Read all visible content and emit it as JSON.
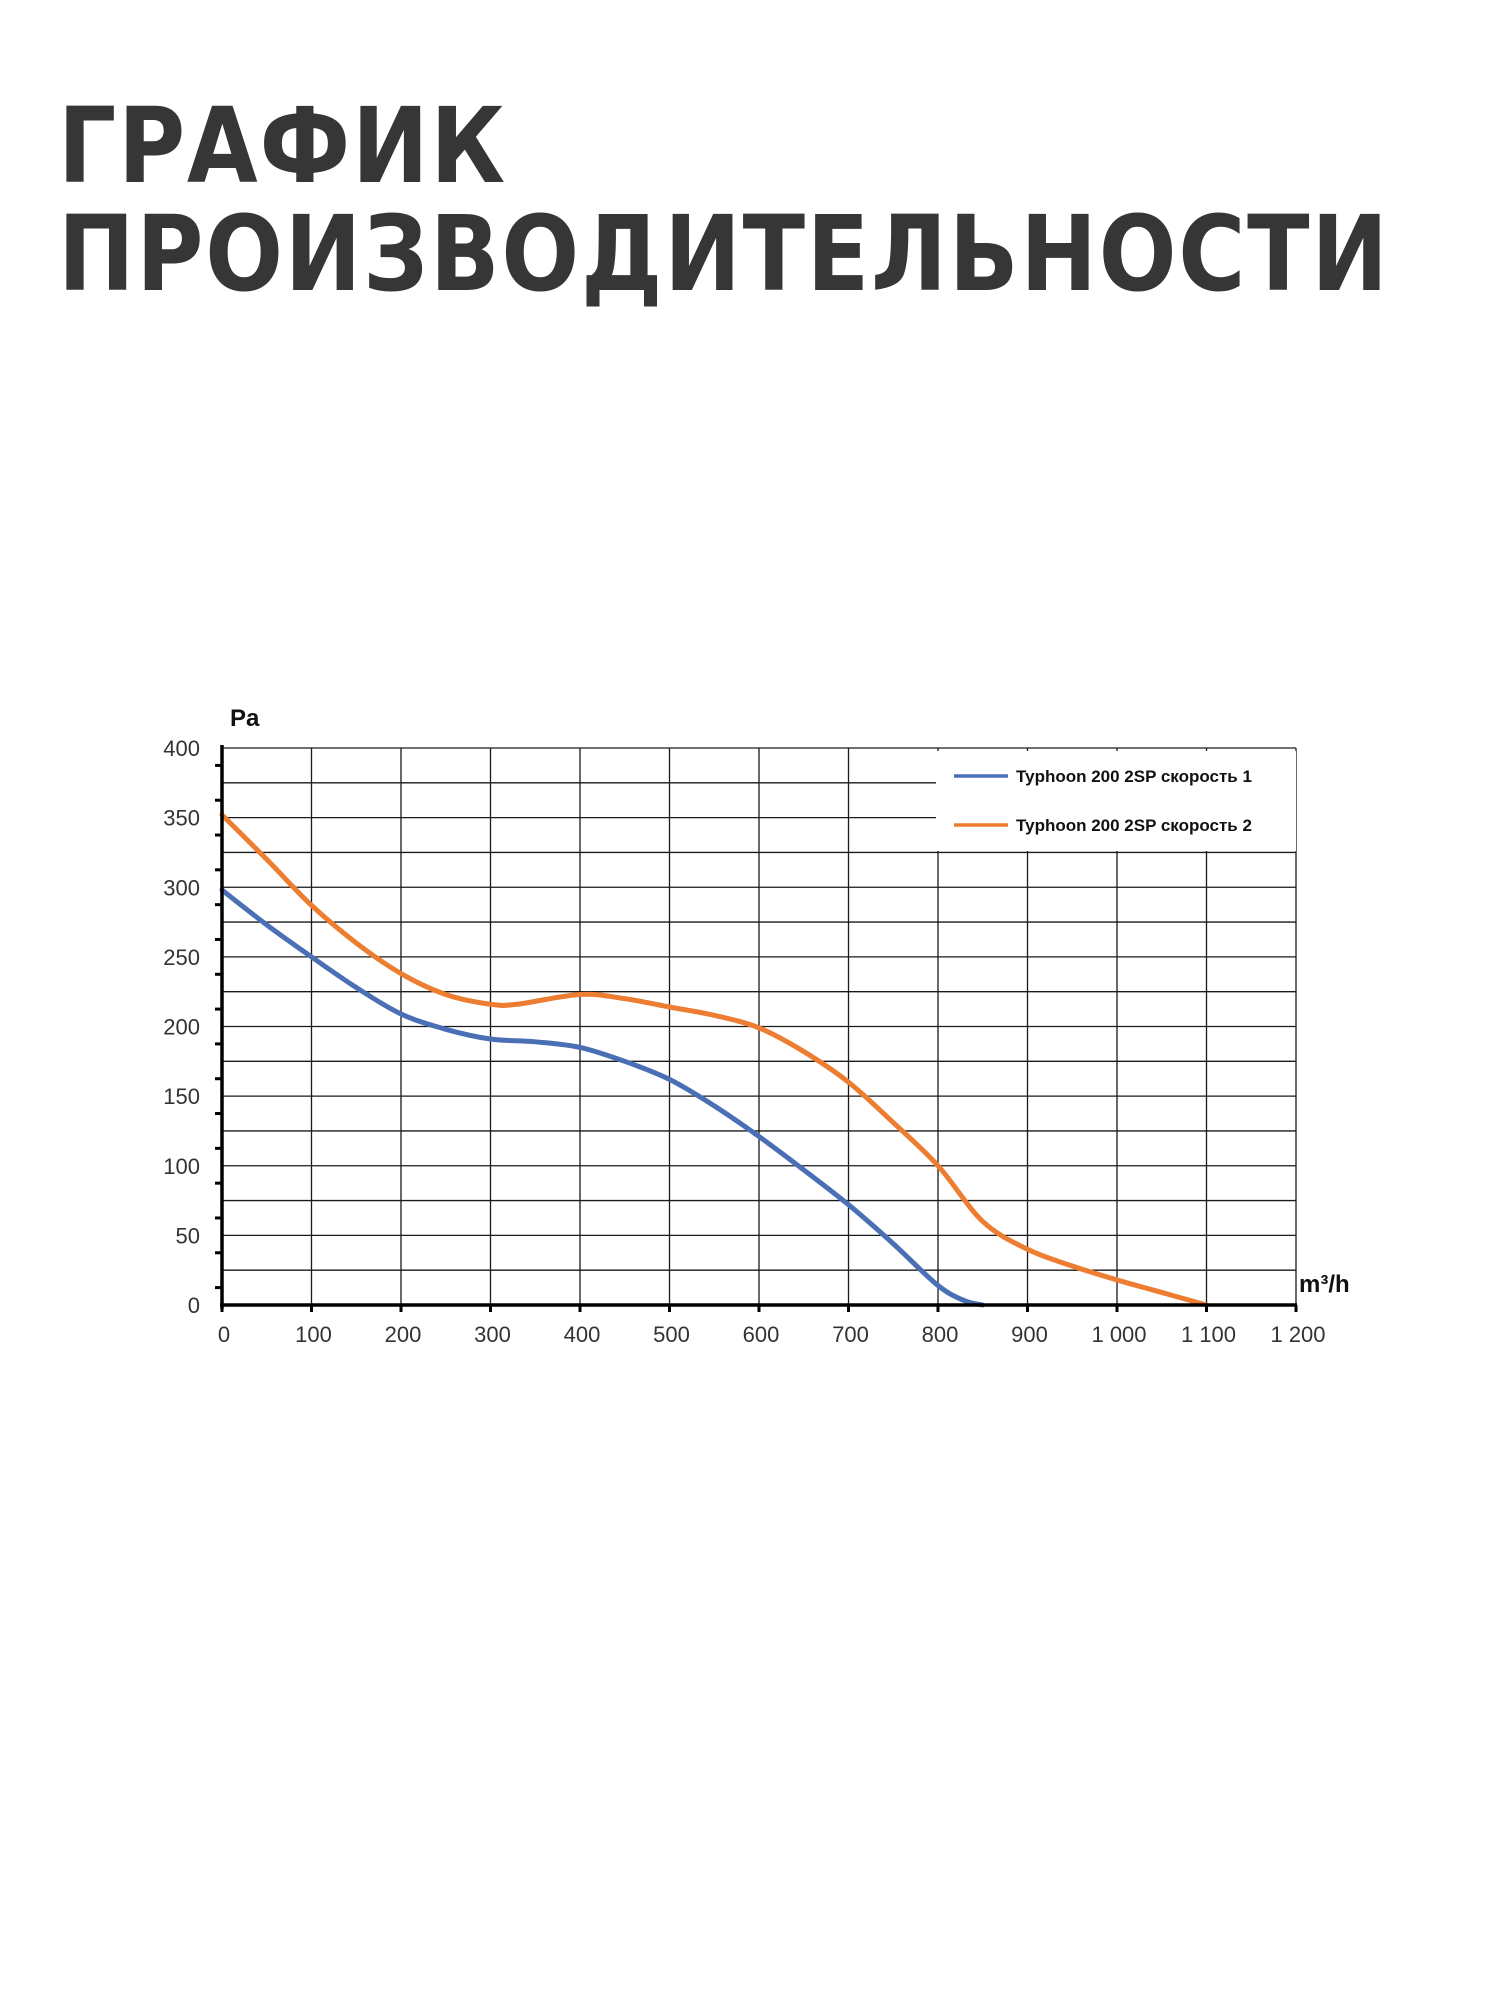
{
  "page": {
    "title_line1": "ГРАФИК",
    "title_line2": "ПРОИЗВОДИТЕЛЬНОСТИ"
  },
  "chart_data": {
    "type": "line",
    "ylabel": "Pa",
    "xlabel": "m³/h",
    "xlim": [
      0,
      1200
    ],
    "ylim": [
      0,
      400
    ],
    "xticks": [
      0,
      100,
      200,
      300,
      400,
      500,
      600,
      700,
      800,
      900,
      1000,
      1100,
      1200
    ],
    "xtick_labels": [
      "0",
      "100",
      "200",
      "300",
      "400",
      "500",
      "600",
      "700",
      "800",
      "900",
      "1 000",
      "1 100",
      "1 200"
    ],
    "yticks": [
      0,
      50,
      100,
      150,
      200,
      250,
      300,
      350,
      400
    ],
    "ytick_labels": [
      "0",
      "50",
      "100",
      "150",
      "200",
      "250",
      "300",
      "350",
      "400"
    ],
    "grid": true,
    "legend_position": "top-right",
    "series": [
      {
        "name": "Typhoon 200 2SP скорость 1",
        "color": "#4a6fb5",
        "x": [
          0,
          50,
          100,
          150,
          200,
          250,
          300,
          350,
          400,
          450,
          500,
          550,
          600,
          650,
          700,
          750,
          800,
          830,
          850
        ],
        "y": [
          298,
          273,
          250,
          228,
          209,
          198,
          191,
          189,
          185,
          175,
          162,
          143,
          121,
          97,
          72,
          44,
          14,
          3,
          0
        ]
      },
      {
        "name": "Typhoon 200 2SP скорость 2",
        "color": "#ed7d31",
        "x": [
          0,
          50,
          100,
          150,
          200,
          250,
          300,
          330,
          400,
          450,
          500,
          550,
          600,
          650,
          700,
          750,
          800,
          850,
          900,
          950,
          1000,
          1050,
          1100
        ],
        "y": [
          352,
          320,
          287,
          260,
          238,
          223,
          216,
          216,
          223,
          220,
          214,
          208,
          199,
          182,
          160,
          131,
          100,
          60,
          40,
          28,
          18,
          9,
          0
        ]
      }
    ]
  }
}
